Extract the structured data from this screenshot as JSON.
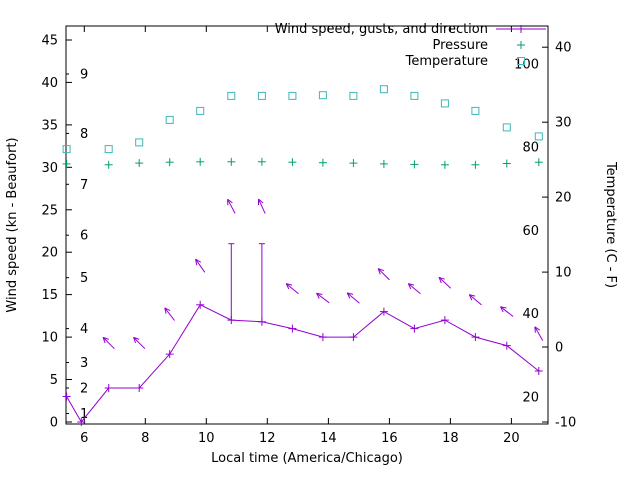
{
  "chart_data": {
    "type": "line",
    "title": "",
    "xlabel": "Local time (America/Chicago)",
    "ylabel_left": "Wind speed (kn - Beaufort)",
    "ylabel_right": "Temperature (C - F)",
    "x_range": [
      5.4,
      21.2
    ],
    "x_ticks": [
      6,
      8,
      10,
      12,
      14,
      16,
      18,
      20
    ],
    "wind_range": [
      -0.24,
      46.65
    ],
    "wind_ticks": [
      0,
      5,
      10,
      15,
      20,
      25,
      30,
      35,
      40,
      45
    ],
    "beaufort_ticks": [
      {
        "label": "1",
        "kn": 1
      },
      {
        "label": "2",
        "kn": 4
      },
      {
        "label": "3",
        "kn": 7
      },
      {
        "label": "4",
        "kn": 11
      },
      {
        "label": "5",
        "kn": 17
      },
      {
        "label": "6",
        "kn": 22
      },
      {
        "label": "7",
        "kn": 28
      },
      {
        "label": "8",
        "kn": 34
      },
      {
        "label": "9",
        "kn": 41
      }
    ],
    "temp_range": [
      -10.27,
      42.83
    ],
    "temp_ticks_c": [
      -10,
      0,
      10,
      20,
      30,
      40
    ],
    "temp_ticks_f": [
      20,
      40,
      60,
      80,
      100
    ],
    "legend": [
      {
        "label": "Wind speed, gusts, and direction",
        "series": "wind"
      },
      {
        "label": "Pressure",
        "series": "pressure"
      },
      {
        "label": "Temperature",
        "series": "temperature"
      }
    ],
    "colors": {
      "wind": "#9400d3",
      "pressure": "#009e73",
      "temperature": "#3db7b7",
      "axis": "#000000"
    },
    "series": {
      "wind": {
        "t": [
          5.42,
          5.9,
          6.8,
          7.8,
          8.8,
          9.8,
          10.82,
          11.82,
          12.82,
          13.82,
          14.82,
          15.82,
          16.82,
          17.82,
          18.82,
          19.85,
          20.9
        ],
        "speed_kn": [
          3,
          0,
          4,
          4,
          8,
          13.8,
          12,
          11.8,
          11,
          10,
          10,
          13,
          11,
          12,
          10,
          9,
          6
        ],
        "gust_kn": [
          3,
          0,
          4,
          4,
          8,
          13.8,
          21,
          21,
          11,
          10,
          10,
          13,
          11,
          12,
          10,
          9,
          6
        ]
      },
      "wind_direction_arrows": [
        {
          "t": 6.8,
          "kn": 9.3,
          "dir_deg": 135
        },
        {
          "t": 7.8,
          "kn": 9.3,
          "dir_deg": 135
        },
        {
          "t": 8.8,
          "kn": 12.7,
          "dir_deg": 128
        },
        {
          "t": 9.8,
          "kn": 18.4,
          "dir_deg": 125
        },
        {
          "t": 10.82,
          "kn": 25.4,
          "dir_deg": 118
        },
        {
          "t": 11.82,
          "kn": 25.4,
          "dir_deg": 115
        },
        {
          "t": 12.82,
          "kn": 15.7,
          "dir_deg": 140
        },
        {
          "t": 13.82,
          "kn": 14.6,
          "dir_deg": 143
        },
        {
          "t": 14.82,
          "kn": 14.6,
          "dir_deg": 140
        },
        {
          "t": 15.82,
          "kn": 17.4,
          "dir_deg": 135
        },
        {
          "t": 16.82,
          "kn": 15.7,
          "dir_deg": 140
        },
        {
          "t": 17.82,
          "kn": 16.4,
          "dir_deg": 137
        },
        {
          "t": 18.82,
          "kn": 14.4,
          "dir_deg": 140
        },
        {
          "t": 19.85,
          "kn": 13.0,
          "dir_deg": 142
        },
        {
          "t": 20.9,
          "kn": 10.4,
          "dir_deg": 120
        }
      ],
      "pressure": {
        "t": [
          5.42,
          6.8,
          7.8,
          8.8,
          9.8,
          10.82,
          11.82,
          12.82,
          13.82,
          14.82,
          15.82,
          16.82,
          17.82,
          18.82,
          19.85,
          20.9
        ],
        "value": [
          30.4,
          30.3,
          30.5,
          30.6,
          30.65,
          30.65,
          30.65,
          30.6,
          30.55,
          30.5,
          30.4,
          30.35,
          30.3,
          30.3,
          30.45,
          30.6
        ]
      },
      "temperature": {
        "t": [
          5.42,
          6.8,
          7.8,
          8.8,
          9.8,
          10.82,
          11.82,
          12.82,
          13.82,
          14.82,
          15.82,
          16.82,
          17.82,
          18.82,
          19.85,
          20.9
        ],
        "c": [
          26.4,
          26.4,
          27.3,
          30.3,
          31.5,
          33.5,
          33.5,
          33.5,
          33.6,
          33.5,
          34.4,
          33.5,
          32.5,
          31.5,
          29.3,
          28.1
        ]
      }
    }
  }
}
